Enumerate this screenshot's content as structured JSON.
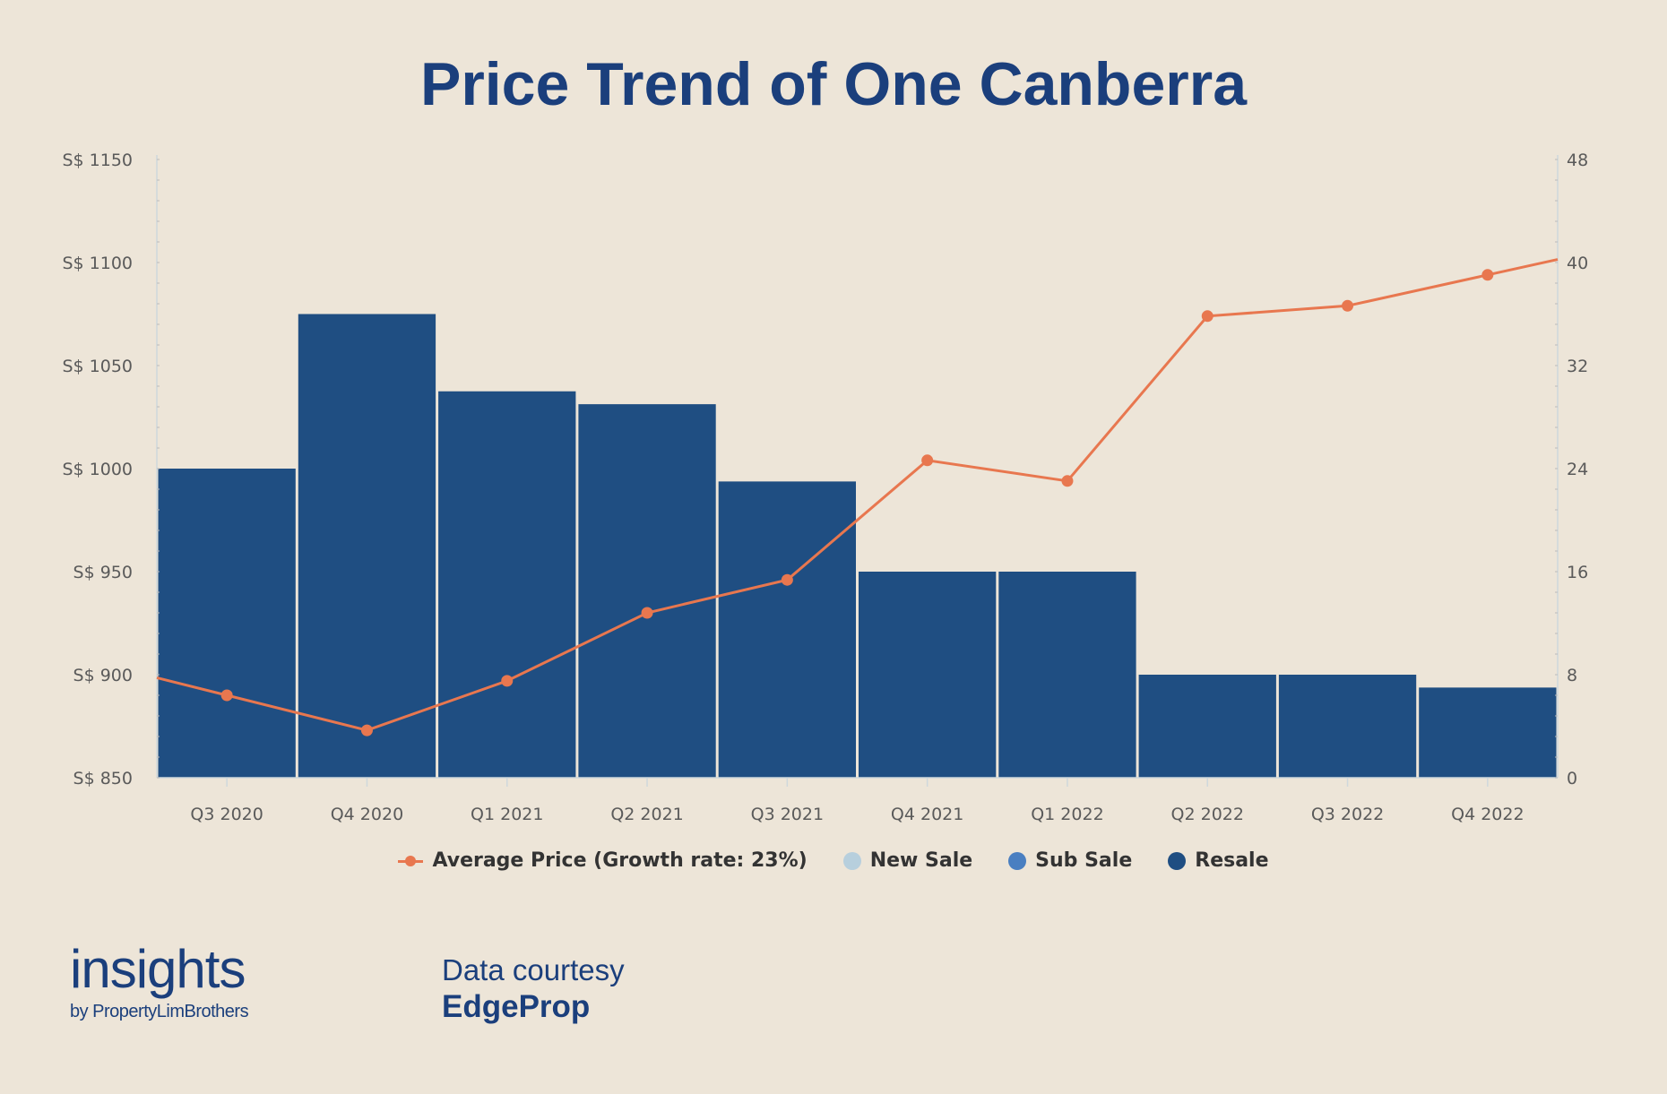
{
  "colors": {
    "background": "#ede5d8",
    "resale": "#1f4e82",
    "sub_sale": "#4a7fc1",
    "new_sale": "#b7cfdd",
    "line": "#e8774f",
    "title": "#1b3f7c"
  },
  "chart_data": {
    "type": "bar+line",
    "title": "Price Trend of One Canberra",
    "categories": [
      "Q3 2020",
      "Q4 2020",
      "Q1 2021",
      "Q2 2021",
      "Q3 2021",
      "Q4 2021",
      "Q1 2022",
      "Q2 2022",
      "Q3 2022",
      "Q4 2022"
    ],
    "left_axis": {
      "ylim": [
        850,
        1150
      ],
      "ticks": [
        "S$ 850",
        "S$ 900",
        "S$ 950",
        "S$ 1000",
        "S$ 1050",
        "S$ 1100",
        "S$ 1150"
      ],
      "tick_values": [
        850,
        900,
        950,
        1000,
        1050,
        1100,
        1150
      ]
    },
    "right_axis": {
      "ylim": [
        0,
        48
      ],
      "ticks": [
        "0",
        "8",
        "16",
        "24",
        "32",
        "40",
        "48"
      ],
      "tick_values": [
        0,
        8,
        16,
        24,
        32,
        40,
        48
      ]
    },
    "series": [
      {
        "name": "Average Price (Growth rate: 23%)",
        "type": "line",
        "axis": "left",
        "values": [
          890,
          873,
          897,
          930,
          946,
          1004,
          994,
          1074,
          1079,
          1094
        ]
      },
      {
        "name": "New Sale",
        "type": "bar",
        "axis": "right",
        "values": [
          0,
          0,
          0,
          0,
          0,
          0,
          0,
          0,
          0,
          0
        ]
      },
      {
        "name": "Sub Sale",
        "type": "bar",
        "axis": "right",
        "values": [
          0,
          0,
          0,
          0,
          0,
          0,
          0,
          0,
          0,
          0
        ]
      },
      {
        "name": "Resale",
        "type": "bar",
        "axis": "right",
        "values": [
          24,
          36,
          30,
          29,
          23,
          16,
          16,
          8,
          8,
          7
        ]
      }
    ],
    "legend_position": "bottom",
    "grid": false
  },
  "footer": {
    "brand_main": "insights",
    "brand_sub": "by PropertyLimBrothers",
    "credit_label": "Data courtesy",
    "credit_source": "EdgeProp"
  }
}
